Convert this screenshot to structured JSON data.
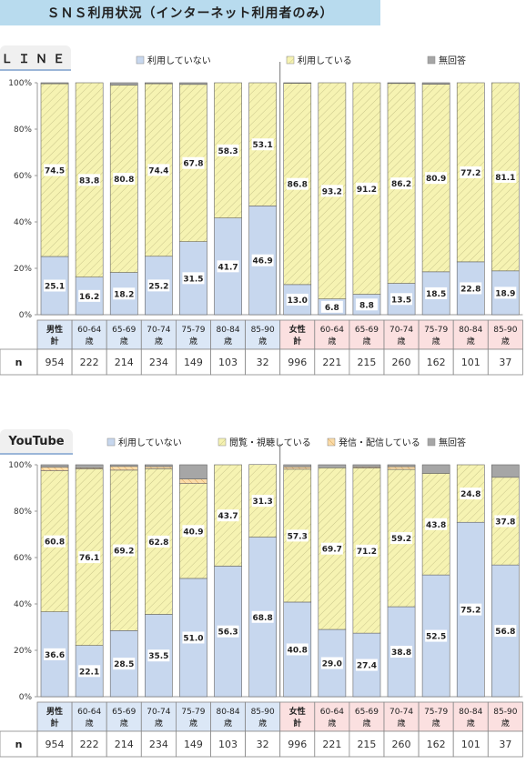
{
  "page_title": "ＳＮＳ利用状況（インターネット利用者のみ）",
  "colors": {
    "not_using": "#c7d7ee",
    "using": "#f6f3b2",
    "posting": "#fbdca8",
    "no_answer": "#a6a6a6",
    "male_band": "#dbe7f6",
    "female_band": "#fbe0e0"
  },
  "n_label": "n",
  "chart_data": [
    {
      "type": "bar",
      "stacked": true,
      "title": "ＬＩＮＥ",
      "categories": [
        "男性\n計",
        "60-64\n歳",
        "65-69\n歳",
        "70-74\n歳",
        "75-79\n歳",
        "80-84\n歳",
        "85-90\n歳",
        "女性\n計",
        "60-64\n歳",
        "65-69\n歳",
        "70-74\n歳",
        "75-79\n歳",
        "80-84\n歳",
        "85-90\n歳"
      ],
      "groups": [
        {
          "name": "男性",
          "from": 0,
          "to": 6
        },
        {
          "name": "女性",
          "from": 7,
          "to": 13
        }
      ],
      "n": [
        954,
        222,
        214,
        234,
        149,
        103,
        32,
        996,
        221,
        215,
        260,
        162,
        101,
        37
      ],
      "ylim": [
        0,
        100
      ],
      "yticks": [
        "0%",
        "20%",
        "40%",
        "60%",
        "80%",
        "100%"
      ],
      "grid": false,
      "legend_position": "top",
      "series": [
        {
          "name": "利用していない",
          "color_key": "not_using",
          "values": [
            25.1,
            16.2,
            18.2,
            25.2,
            31.5,
            41.7,
            46.9,
            13.0,
            6.8,
            8.8,
            13.5,
            18.5,
            22.8,
            18.9
          ],
          "labeled": true
        },
        {
          "name": "利用している",
          "color_key": "using",
          "values": [
            74.5,
            83.8,
            80.8,
            74.4,
            67.8,
            58.3,
            53.1,
            86.8,
            93.2,
            91.2,
            86.2,
            80.9,
            77.2,
            81.1
          ],
          "labeled": true
        },
        {
          "name": "無回答",
          "color_key": "no_answer",
          "values": [
            0.4,
            0.0,
            1.0,
            0.4,
            0.7,
            0.0,
            0.0,
            0.2,
            0.0,
            0.0,
            0.3,
            0.6,
            0.0,
            0.0
          ],
          "labeled": false
        }
      ]
    },
    {
      "type": "bar",
      "stacked": true,
      "title": "YouTube",
      "categories": [
        "男性\n計",
        "60-64\n歳",
        "65-69\n歳",
        "70-74\n歳",
        "75-79\n歳",
        "80-84\n歳",
        "85-90\n歳",
        "女性\n計",
        "60-64\n歳",
        "65-69\n歳",
        "70-74\n歳",
        "75-79\n歳",
        "80-84\n歳",
        "85-90\n歳"
      ],
      "groups": [
        {
          "name": "男性",
          "from": 0,
          "to": 6
        },
        {
          "name": "女性",
          "from": 7,
          "to": 13
        }
      ],
      "n": [
        954,
        222,
        214,
        234,
        149,
        103,
        32,
        996,
        221,
        215,
        260,
        162,
        101,
        37
      ],
      "ylim": [
        0,
        100
      ],
      "yticks": [
        "0%",
        "20%",
        "40%",
        "60%",
        "80%",
        "100%"
      ],
      "grid": false,
      "legend_position": "top",
      "series": [
        {
          "name": "利用していない",
          "color_key": "not_using",
          "values": [
            36.6,
            22.1,
            28.5,
            35.5,
            51.0,
            56.3,
            68.8,
            40.8,
            29.0,
            27.4,
            38.8,
            52.5,
            75.2,
            56.8
          ],
          "labeled": true
        },
        {
          "name": "閲覧・視聴している",
          "color_key": "using",
          "values": [
            60.8,
            76.1,
            69.2,
            62.8,
            40.9,
            43.7,
            31.3,
            57.3,
            69.7,
            71.2,
            59.2,
            43.8,
            24.8,
            37.8
          ],
          "labeled": true
        },
        {
          "name": "発信・配信している",
          "color_key": "posting",
          "values": [
            1.6,
            0.5,
            1.6,
            0.9,
            2.0,
            0.0,
            0.0,
            1.0,
            0.0,
            0.5,
            1.2,
            0.0,
            0.0,
            0.0
          ],
          "labeled": false
        },
        {
          "name": "無回答",
          "color_key": "no_answer",
          "values": [
            1.0,
            1.3,
            0.7,
            0.8,
            6.1,
            0.0,
            0.0,
            0.9,
            1.3,
            0.9,
            0.8,
            3.7,
            0.0,
            5.4
          ],
          "labeled": false
        }
      ]
    }
  ]
}
